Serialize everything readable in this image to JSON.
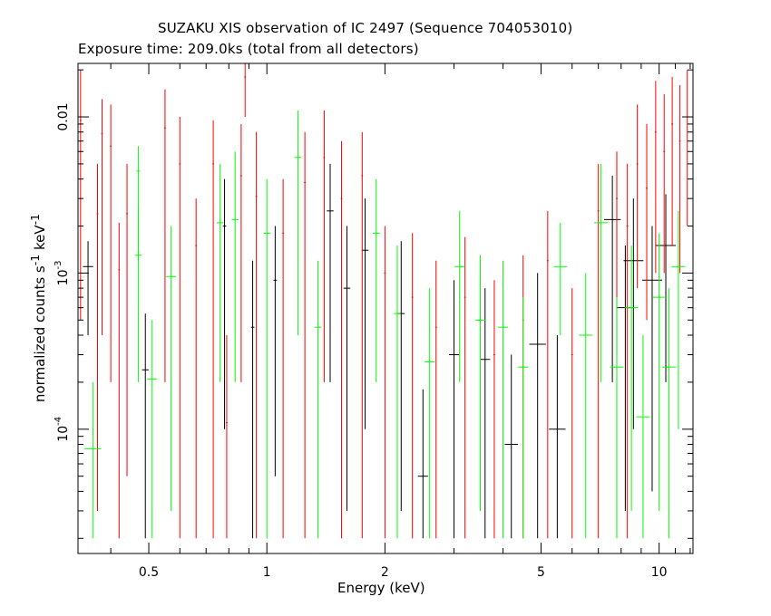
{
  "chart_data": {
    "type": "scatter",
    "title": "SUZAKU XIS observation of IC 2497 (Sequence 704053010)",
    "subtitle": "Exposure time: 209.0ks (total from all detectors)",
    "xlabel": "Energy (keV)",
    "ylabel": "normalized counts s",
    "ylabel_sup1": "-1",
    "ylabel_mid": " keV",
    "ylabel_sup2": "-1",
    "xscale": "log",
    "yscale": "log",
    "xlim": [
      0.33,
      12.2
    ],
    "ylim": [
      1.6e-05,
      0.022
    ],
    "x_ticks": [
      {
        "value": 0.5,
        "label": "0.5"
      },
      {
        "value": 1,
        "label": "1"
      },
      {
        "value": 2,
        "label": "2"
      },
      {
        "value": 5,
        "label": "5"
      },
      {
        "value": 10,
        "label": "10"
      }
    ],
    "y_ticks": [
      {
        "value": 0.0001,
        "base": "10",
        "exp": "-4"
      },
      {
        "value": 0.001,
        "base": "10",
        "exp": "-3"
      },
      {
        "value": 0.01,
        "base": "0.01",
        "exp": ""
      }
    ],
    "series": [
      {
        "color": "#000000",
        "points": [
          [
            0.35,
            0.0011,
            0.03,
            0.0004,
            0.0016
          ],
          [
            0.49,
            0.00024,
            0.02,
            2e-05,
            0.00055
          ],
          [
            0.78,
            0.002,
            0.01,
            0.0001,
            0.004
          ],
          [
            0.92,
            0.00045,
            0.01,
            2e-05,
            0.0012
          ],
          [
            1.05,
            0.0009,
            0.01,
            5e-05,
            0.002
          ],
          [
            1.45,
            0.0025,
            0.02,
            0.0002,
            0.005
          ],
          [
            1.6,
            0.0008,
            0.02,
            3e-05,
            0.002
          ],
          [
            1.78,
            0.0014,
            0.02,
            0.0001,
            0.003
          ],
          [
            2.2,
            0.00055,
            0.02,
            3e-05,
            0.0016
          ],
          [
            2.5,
            5e-05,
            0.03,
            2e-05,
            0.00018
          ],
          [
            3.0,
            0.0003,
            0.03,
            2e-05,
            0.0009
          ],
          [
            3.6,
            0.00028,
            0.03,
            2e-05,
            0.0008
          ],
          [
            4.2,
            8e-05,
            0.04,
            2e-05,
            0.0003
          ],
          [
            4.9,
            0.00035,
            0.05,
            2e-05,
            0.001
          ],
          [
            5.5,
            0.0001,
            0.05,
            2e-05,
            0.0004
          ],
          [
            7.6,
            0.0022,
            0.05,
            0.0002,
            0.0042
          ],
          [
            8.2,
            0.0006,
            0.05,
            3e-05,
            0.0015
          ],
          [
            8.6,
            0.0012,
            0.06,
            0.0001,
            0.003
          ],
          [
            9.6,
            0.0009,
            0.06,
            4e-05,
            0.002
          ],
          [
            10.4,
            0.0015,
            0.06,
            0.0002,
            0.0032
          ]
        ]
      },
      {
        "color": "#ff0000",
        "points": [
          [
            0.335,
            0.0095,
            0.005,
            0.0005,
            0.02
          ],
          [
            0.37,
            0.0024,
            0.005,
            3e-05,
            0.005
          ],
          [
            0.38,
            0.0078,
            0.005,
            0.0004,
            0.013
          ],
          [
            0.4,
            0.0065,
            0.005,
            0.0002,
            0.012
          ],
          [
            0.42,
            0.00105,
            0.005,
            2e-05,
            0.0021
          ],
          [
            0.44,
            0.0024,
            0.005,
            5e-05,
            0.005
          ],
          [
            0.55,
            0.0085,
            0.005,
            0.0002,
            0.015
          ],
          [
            0.6,
            0.005,
            0.005,
            2e-05,
            0.01
          ],
          [
            0.66,
            0.0015,
            0.005,
            2e-05,
            0.003
          ],
          [
            0.73,
            0.005,
            0.005,
            2e-05,
            0.0095
          ],
          [
            0.79,
            0.00011,
            0.005,
            2e-05,
            0.0004
          ],
          [
            0.86,
            0.0042,
            0.005,
            0.0002,
            0.009
          ],
          [
            0.88,
            0.018,
            0.005,
            0.01,
            0.022
          ],
          [
            0.94,
            0.0031,
            0.005,
            2e-05,
            0.008
          ],
          [
            1.1,
            0.0018,
            0.005,
            2e-05,
            0.004
          ],
          [
            1.25,
            0.0038,
            0.005,
            2e-05,
            0.008
          ],
          [
            1.4,
            0.0055,
            0.005,
            0.0002,
            0.011
          ],
          [
            1.55,
            0.003,
            0.005,
            2e-05,
            0.007
          ],
          [
            1.75,
            0.0042,
            0.005,
            2e-05,
            0.008
          ],
          [
            2.0,
            0.001,
            0.005,
            2e-05,
            0.002
          ],
          [
            2.35,
            0.0007,
            0.005,
            2e-05,
            0.0018
          ],
          [
            2.7,
            0.00045,
            0.005,
            2e-05,
            0.0012
          ],
          [
            3.2,
            0.0007,
            0.005,
            2e-05,
            0.0017
          ],
          [
            3.8,
            0.0003,
            0.005,
            2e-05,
            0.0009
          ],
          [
            4.5,
            0.0005,
            0.005,
            2e-05,
            0.0013
          ],
          [
            5.2,
            0.0012,
            0.005,
            2e-05,
            0.0025
          ],
          [
            6.0,
            0.0003,
            0.005,
            2e-05,
            0.0008
          ],
          [
            7.0,
            0.0025,
            0.005,
            2e-05,
            0.005
          ],
          [
            7.8,
            0.003,
            0.005,
            0.0003,
            0.006
          ],
          [
            8.3,
            0.002,
            0.005,
            2e-05,
            0.005
          ],
          [
            8.8,
            0.005,
            0.005,
            0.0008,
            0.012
          ],
          [
            9.3,
            0.0035,
            0.005,
            0.0005,
            0.009
          ],
          [
            9.8,
            0.008,
            0.005,
            0.001,
            0.017
          ],
          [
            10.3,
            0.006,
            0.005,
            0.001,
            0.014
          ],
          [
            10.8,
            0.009,
            0.005,
            0.0015,
            0.018
          ],
          [
            11.3,
            0.007,
            0.005,
            0.001,
            0.016
          ],
          [
            11.8,
            0.01,
            0.005,
            0.002,
            0.02
          ]
        ]
      },
      {
        "color": "#00ff00",
        "points": [
          [
            0.36,
            7.5e-05,
            0.05,
            2e-05,
            0.0002
          ],
          [
            0.47,
            0.0013,
            0.02,
            0.0002,
            0.0026
          ],
          [
            0.51,
            0.00021,
            0.03,
            2e-05,
            0.0005
          ],
          [
            0.47,
            0.0045,
            0.01,
            0.0012,
            0.0065
          ],
          [
            0.57,
            0.00095,
            0.03,
            3e-05,
            0.002
          ],
          [
            0.76,
            0.0021,
            0.02,
            0.0002,
            0.005
          ],
          [
            0.83,
            0.0022,
            0.02,
            0.0002,
            0.006
          ],
          [
            1.0,
            0.0018,
            0.02,
            2e-05,
            0.004
          ],
          [
            1.2,
            0.0055,
            0.02,
            0.0004,
            0.011
          ],
          [
            1.35,
            0.00045,
            0.02,
            2e-05,
            0.0012
          ],
          [
            1.9,
            0.0018,
            0.02,
            0.0002,
            0.004
          ],
          [
            2.15,
            0.00055,
            0.02,
            2e-05,
            0.0015
          ],
          [
            2.6,
            0.00027,
            0.03,
            2e-05,
            0.0008
          ],
          [
            3.1,
            0.0011,
            0.03,
            0.0002,
            0.0025
          ],
          [
            3.5,
            0.0005,
            0.03,
            3e-05,
            0.0013
          ],
          [
            4.0,
            0.00045,
            0.03,
            2e-05,
            0.0012
          ],
          [
            4.5,
            0.00025,
            0.03,
            2e-05,
            0.0007
          ],
          [
            5.6,
            0.0011,
            0.04,
            0.0004,
            0.0021
          ],
          [
            6.5,
            0.0004,
            0.04,
            2e-05,
            0.001
          ],
          [
            7.1,
            0.0021,
            0.04,
            0.0002,
            0.005
          ],
          [
            7.8,
            0.00025,
            0.04,
            2e-05,
            0.0007
          ],
          [
            8.5,
            0.0006,
            0.04,
            3e-05,
            0.0015
          ],
          [
            9.1,
            0.00012,
            0.04,
            2e-05,
            0.0004
          ],
          [
            10.0,
            0.0007,
            0.04,
            3e-05,
            0.0018
          ],
          [
            10.6,
            0.00025,
            0.04,
            2e-05,
            0.0008
          ],
          [
            11.2,
            0.0011,
            0.04,
            0.0001,
            0.0025
          ]
        ]
      }
    ]
  }
}
